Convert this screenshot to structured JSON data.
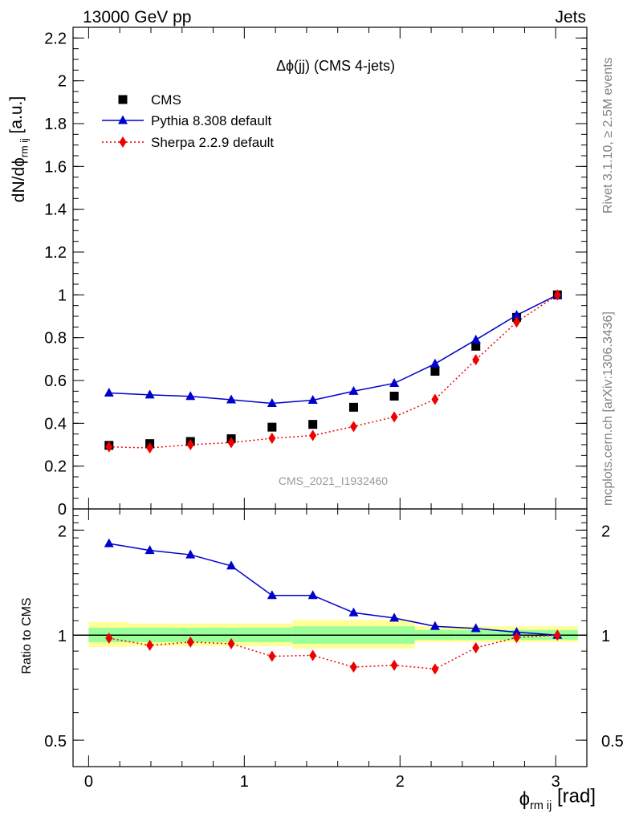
{
  "header": {
    "left": "13000 GeV pp",
    "right": "Jets"
  },
  "side_labels": {
    "rivet": "Rivet 3.1.10, ≥ 2.5M events",
    "mcplots": "mcplots.cern.ch [arXiv:1306.3436]"
  },
  "analysis_id": "CMS_2021_I1932460",
  "colors": {
    "cms": "#000000",
    "pythia": "#0000cc",
    "sherpa": "#ee0000",
    "band_inner": "#99ff99",
    "band_outer": "#ffff99"
  },
  "chart_data": [
    {
      "type": "line",
      "title": "Δϕ(jj) (CMS 4-jets)",
      "ylabel": "dN/dϕ_{rm ij} [a.u.]",
      "xlim": [
        -0.1,
        3.2
      ],
      "ylim": [
        0,
        2.25
      ],
      "yticks": [
        0,
        0.2,
        0.4,
        0.6,
        0.8,
        1,
        1.2,
        1.4,
        1.6,
        1.8,
        2,
        2.2
      ],
      "ytick_labels": [
        "0",
        "0.2",
        "0.4",
        "0.6",
        "0.8",
        "1",
        "1.2",
        "1.4",
        "1.6",
        "1.8",
        "2",
        "2.2"
      ],
      "legend_position": "top-left",
      "x": [
        0.131,
        0.393,
        0.654,
        0.916,
        1.178,
        1.44,
        1.702,
        1.963,
        2.225,
        2.487,
        2.749,
        3.011
      ],
      "series": [
        {
          "name": "CMS",
          "marker": "square",
          "values": [
            0.297,
            0.305,
            0.315,
            0.328,
            0.382,
            0.395,
            0.475,
            0.527,
            0.643,
            0.76,
            0.895,
            1.0
          ]
        },
        {
          "name": "Pythia 8.308 default",
          "marker": "triangle",
          "values": [
            0.542,
            0.533,
            0.526,
            0.51,
            0.493,
            0.508,
            0.55,
            0.587,
            0.678,
            0.79,
            0.905,
            1.0
          ]
        },
        {
          "name": "Sherpa 2.2.9 default",
          "marker": "diamond",
          "values": [
            0.29,
            0.285,
            0.3,
            0.31,
            0.33,
            0.343,
            0.385,
            0.43,
            0.512,
            0.697,
            0.873,
            1.0
          ]
        }
      ]
    },
    {
      "type": "line",
      "ylabel": "Ratio to CMS",
      "xlabel": "ϕ_{rm ij} [rad]",
      "xlim": [
        -0.1,
        3.2
      ],
      "ylim": [
        0.42,
        2.3
      ],
      "log_y": true,
      "xticks": [
        0,
        1,
        2,
        3
      ],
      "xtick_labels": [
        "0",
        "1",
        "2",
        "3"
      ],
      "yticks": [
        0.5,
        1,
        2
      ],
      "ytick_labels": [
        "0.5",
        "1",
        "2"
      ],
      "x": [
        0.131,
        0.393,
        0.654,
        0.916,
        1.178,
        1.44,
        1.702,
        1.963,
        2.225,
        2.487,
        2.749,
        3.011
      ],
      "bin_edges": [
        0.0,
        0.262,
        0.524,
        0.785,
        1.047,
        1.309,
        1.571,
        1.833,
        2.094,
        2.356,
        2.618,
        2.88,
        3.142
      ],
      "band_inner": [
        [
          0.955,
          1.05
        ],
        [
          0.955,
          1.05
        ],
        [
          0.955,
          1.05
        ],
        [
          0.955,
          1.05
        ],
        [
          0.955,
          1.05
        ],
        [
          0.945,
          1.06
        ],
        [
          0.945,
          1.06
        ],
        [
          0.945,
          1.06
        ],
        [
          0.97,
          1.035
        ],
        [
          0.97,
          1.035
        ],
        [
          0.97,
          1.035
        ],
        [
          0.97,
          1.035
        ]
      ],
      "band_outer": [
        [
          0.925,
          1.09
        ],
        [
          0.93,
          1.08
        ],
        [
          0.93,
          1.08
        ],
        [
          0.93,
          1.08
        ],
        [
          0.93,
          1.08
        ],
        [
          0.915,
          1.105
        ],
        [
          0.915,
          1.105
        ],
        [
          0.915,
          1.105
        ],
        [
          0.955,
          1.06
        ],
        [
          0.955,
          1.06
        ],
        [
          0.955,
          1.06
        ],
        [
          0.955,
          1.06
        ]
      ],
      "series": [
        {
          "name": "Pythia 8.308 default",
          "values": [
            1.83,
            1.75,
            1.7,
            1.58,
            1.3,
            1.3,
            1.16,
            1.12,
            1.06,
            1.045,
            1.02,
            1.0
          ]
        },
        {
          "name": "Sherpa 2.2.9 default",
          "values": [
            0.98,
            0.935,
            0.955,
            0.945,
            0.87,
            0.875,
            0.81,
            0.82,
            0.8,
            0.92,
            0.985,
            1.0
          ]
        }
      ]
    }
  ]
}
